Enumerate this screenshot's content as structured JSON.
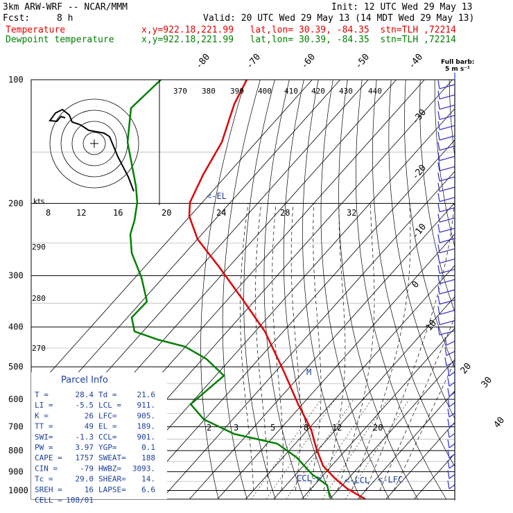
{
  "header": {
    "model": "3km ARW-WRF -- NCAR/MMM",
    "init": "Init: 12 UTC Wed 29 May 13",
    "fcst_label": "Fcst:",
    "fcst_value": "8 h",
    "valid": "Valid: 20 UTC Wed 29 May 13 (14 MDT Wed 29 May 13)",
    "temp_label": "Temperature",
    "temp_loc": "x,y=922.18,221.99   lat,lon= 30.39, -84.35  stn=TLH ,72214",
    "dew_label": "Dewpoint temperature",
    "dew_loc": "x,y=922.18,221.99   lat,lon= 30.39, -84.35  stn=TLH ,72214",
    "barb_title_1": "Full barb:",
    "barb_title_2": "5 m s⁻¹"
  },
  "colors": {
    "temperature": "#e00000",
    "dewpoint": "#008000",
    "parcel_info": "#1c3f9c",
    "barbs": "#2b2bd0"
  },
  "chart_data": {
    "type": "line",
    "title": "Skew-T",
    "y_axis": {
      "label_values": [
        "100",
        "200",
        "300",
        "400",
        "500",
        "600",
        "700",
        "800",
        "900",
        "1000"
      ]
    },
    "isotherm_labels": [
      "-80",
      "-70",
      "-60",
      "-50",
      "-40",
      "-30",
      "-20",
      "-10",
      "0",
      "10",
      "20",
      "30",
      "40"
    ],
    "theta_labels": [
      "370",
      "380",
      "390",
      "400",
      "410",
      "420",
      "430",
      "440"
    ],
    "theta_e_labels": [
      "290",
      "280",
      "270"
    ],
    "hodograph_unit": "kts",
    "hodograph_ticks": [
      "8",
      "12",
      "16",
      "20",
      "24",
      "28",
      "32"
    ],
    "mixing_ratio_labels": [
      "2",
      "3",
      "5",
      "8",
      "12",
      "20"
    ],
    "markers": {
      "el": "<-EL",
      "lcl": "<-LCL",
      "lfc": "<-LFC",
      "ccl": "CCL->",
      "m": "M"
    },
    "series": [
      {
        "name": "Temperature",
        "pressure": [
          100,
          150,
          200,
          250,
          300,
          350,
          400,
          450,
          500,
          550,
          600,
          650,
          700,
          750,
          800,
          850,
          900,
          950,
          1000
        ],
        "values": [
          -70,
          -62,
          -53,
          -46,
          -38,
          -29,
          -20,
          -14,
          -9,
          -4,
          0,
          5,
          8,
          12,
          16,
          20,
          24,
          27,
          28.4
        ]
      },
      {
        "name": "Dewpoint temperature",
        "pressure": [
          100,
          150,
          200,
          250,
          300,
          330,
          350,
          380,
          400,
          450,
          500,
          600,
          650,
          700,
          750,
          800,
          850,
          900,
          950,
          1000
        ],
        "values": [
          -93,
          -93,
          -93,
          -95,
          -88,
          -80,
          -87,
          -100,
          -97,
          -60,
          -44,
          -45,
          -23,
          -5,
          7,
          12,
          16,
          18,
          20,
          21.6
        ]
      }
    ]
  },
  "parcel_info": {
    "title": "Parcel Info",
    "rows": [
      [
        "T  =",
        "28.4",
        "Td =",
        "21.6"
      ],
      [
        "LI =",
        "-5.5",
        "LCL =",
        "911."
      ],
      [
        "K  =",
        "26",
        "LFC=",
        "905."
      ],
      [
        "TT =",
        "49",
        "EL =",
        "189."
      ],
      [
        "SWI=",
        "-1.3",
        "CCL=",
        "901."
      ],
      [
        "PW =",
        "3.97",
        "YGP=",
        "0.1"
      ],
      [
        "CAPE =",
        "1757",
        "SWEAT=",
        "188"
      ],
      [
        "CIN =",
        "-79",
        "HWBZ=",
        "3093."
      ],
      [
        "Tc =",
        "29.0",
        "SHEAR=",
        "14."
      ],
      [
        "SREH =",
        "16",
        "LAPSE=",
        "6.6"
      ],
      [
        "CELL =",
        "108/01",
        "",
        ""
      ]
    ]
  }
}
